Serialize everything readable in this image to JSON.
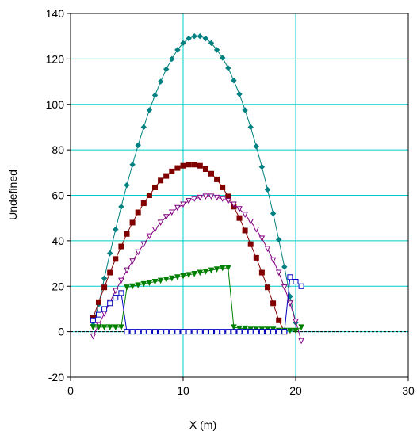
{
  "chart_data": {
    "type": "line",
    "title": "",
    "xlabel": "X (m)",
    "ylabel": "Undefined",
    "xlim": [
      0,
      30
    ],
    "ylim": [
      -20,
      140
    ],
    "xticks": [
      "0",
      "10",
      "20",
      "30"
    ],
    "yticks": [
      "-20",
      "0",
      "20",
      "40",
      "60",
      "80",
      "100",
      "120",
      "140"
    ],
    "xtick_values": [
      0,
      10,
      20,
      30
    ],
    "ytick_values": [
      -20,
      0,
      20,
      40,
      60,
      80,
      100,
      120,
      140
    ],
    "grid": true,
    "grid_color": "#00cccc",
    "zero_line": {
      "y": 0,
      "style": "dashed",
      "color": "#000000"
    },
    "legend": "none",
    "series": [
      {
        "color": "#008080",
        "marker": "diamond",
        "points": [
          [
            2.0,
            3.0
          ],
          [
            2.5,
            12.0
          ],
          [
            3.0,
            23.5
          ],
          [
            3.5,
            34.5
          ],
          [
            4.0,
            45.0
          ],
          [
            4.5,
            55.0
          ],
          [
            5.0,
            64.5
          ],
          [
            5.5,
            73.5
          ],
          [
            6.0,
            82.0
          ],
          [
            6.5,
            90.0
          ],
          [
            7.0,
            97.5
          ],
          [
            7.5,
            104.0
          ],
          [
            8.0,
            110.0
          ],
          [
            8.5,
            115.5
          ],
          [
            9.0,
            120.0
          ],
          [
            9.5,
            124.0
          ],
          [
            10.0,
            127.0
          ],
          [
            10.5,
            129.0
          ],
          [
            11.0,
            130.0
          ],
          [
            11.5,
            130.0
          ],
          [
            12.0,
            129.0
          ],
          [
            12.5,
            127.0
          ],
          [
            13.0,
            124.0
          ],
          [
            13.5,
            120.5
          ],
          [
            14.0,
            116.0
          ],
          [
            14.5,
            110.5
          ],
          [
            15.0,
            104.5
          ],
          [
            15.5,
            97.5
          ],
          [
            16.0,
            90.0
          ],
          [
            16.5,
            81.5
          ],
          [
            17.0,
            72.5
          ],
          [
            17.5,
            62.5
          ],
          [
            18.0,
            52.0
          ],
          [
            18.5,
            40.5
          ],
          [
            19.0,
            28.5
          ],
          [
            19.5,
            15.5
          ],
          [
            20.0,
            4.0
          ]
        ]
      },
      {
        "color": "#800000",
        "marker": "square-filled",
        "points": [
          [
            2.0,
            6.0
          ],
          [
            2.5,
            13.0
          ],
          [
            3.0,
            19.5
          ],
          [
            3.5,
            26.0
          ],
          [
            4.0,
            32.0
          ],
          [
            4.5,
            37.5
          ],
          [
            5.0,
            43.0
          ],
          [
            5.5,
            48.0
          ],
          [
            6.0,
            52.5
          ],
          [
            6.5,
            56.5
          ],
          [
            7.0,
            60.0
          ],
          [
            7.5,
            63.5
          ],
          [
            8.0,
            66.5
          ],
          [
            8.5,
            68.5
          ],
          [
            9.0,
            70.5
          ],
          [
            9.5,
            72.0
          ],
          [
            10.0,
            73.0
          ],
          [
            10.5,
            73.5
          ],
          [
            11.0,
            73.5
          ],
          [
            11.5,
            73.0
          ],
          [
            12.0,
            71.5
          ],
          [
            12.5,
            69.5
          ],
          [
            13.0,
            67.0
          ],
          [
            13.5,
            63.5
          ],
          [
            14.0,
            59.5
          ],
          [
            14.5,
            55.0
          ],
          [
            15.0,
            50.0
          ],
          [
            15.5,
            44.5
          ],
          [
            16.0,
            38.5
          ],
          [
            16.5,
            32.5
          ],
          [
            17.0,
            26.0
          ],
          [
            17.5,
            19.5
          ],
          [
            18.0,
            12.5
          ],
          [
            18.5,
            5.0
          ],
          [
            19.0,
            0.0
          ]
        ]
      },
      {
        "color": "#800080",
        "marker": "triangle-down-open",
        "points": [
          [
            2.0,
            -2.0
          ],
          [
            2.5,
            3.0
          ],
          [
            3.0,
            8.0
          ],
          [
            3.5,
            13.0
          ],
          [
            4.0,
            18.0
          ],
          [
            4.5,
            22.5
          ],
          [
            5.0,
            27.0
          ],
          [
            5.5,
            31.0
          ],
          [
            6.0,
            35.0
          ],
          [
            6.5,
            38.5
          ],
          [
            7.0,
            42.0
          ],
          [
            7.5,
            45.0
          ],
          [
            8.0,
            48.0
          ],
          [
            8.5,
            50.5
          ],
          [
            9.0,
            52.5
          ],
          [
            9.5,
            54.5
          ],
          [
            10.0,
            56.0
          ],
          [
            10.5,
            57.5
          ],
          [
            11.0,
            58.5
          ],
          [
            11.5,
            59.0
          ],
          [
            12.0,
            59.5
          ],
          [
            12.5,
            59.5
          ],
          [
            13.0,
            59.0
          ],
          [
            13.5,
            58.5
          ],
          [
            14.0,
            57.5
          ],
          [
            14.5,
            56.0
          ],
          [
            15.0,
            54.0
          ],
          [
            15.5,
            51.5
          ],
          [
            16.0,
            48.5
          ],
          [
            16.5,
            45.0
          ],
          [
            17.0,
            41.0
          ],
          [
            17.5,
            36.5
          ],
          [
            18.0,
            31.5
          ],
          [
            18.5,
            26.0
          ],
          [
            19.0,
            19.5
          ],
          [
            19.5,
            12.5
          ],
          [
            20.0,
            4.5
          ],
          [
            20.5,
            -4.0
          ]
        ]
      },
      {
        "color": "#008000",
        "marker": "triangle-down-filled",
        "points": [
          [
            2.0,
            2.0
          ],
          [
            2.5,
            2.0
          ],
          [
            3.0,
            2.0
          ],
          [
            3.5,
            2.0
          ],
          [
            4.0,
            2.0
          ],
          [
            4.5,
            2.0
          ],
          [
            5.0,
            19.5
          ],
          [
            5.5,
            20.0
          ],
          [
            6.0,
            20.5
          ],
          [
            6.5,
            21.0
          ],
          [
            7.0,
            21.5
          ],
          [
            7.5,
            22.0
          ],
          [
            8.0,
            22.5
          ],
          [
            8.5,
            23.0
          ],
          [
            9.0,
            23.5
          ],
          [
            9.5,
            24.0
          ],
          [
            10.0,
            24.5
          ],
          [
            10.5,
            25.0
          ],
          [
            11.0,
            25.5
          ],
          [
            11.5,
            26.0
          ],
          [
            12.0,
            26.5
          ],
          [
            12.5,
            27.0
          ],
          [
            13.0,
            27.5
          ],
          [
            13.5,
            28.0
          ],
          [
            14.0,
            28.0
          ],
          [
            14.5,
            2.0
          ],
          [
            15.0,
            1.5
          ],
          [
            15.5,
            1.5
          ],
          [
            16.0,
            1.0
          ],
          [
            16.5,
            1.0
          ],
          [
            17.0,
            1.0
          ],
          [
            17.5,
            1.0
          ],
          [
            18.0,
            1.0
          ],
          [
            18.5,
            0.5
          ],
          [
            19.0,
            0.5
          ],
          [
            19.5,
            0.5
          ],
          [
            20.0,
            0.5
          ],
          [
            20.5,
            2.0
          ]
        ]
      },
      {
        "color": "#0000c0",
        "marker": "square-open",
        "points": [
          [
            2.0,
            5.0
          ],
          [
            2.5,
            7.5
          ],
          [
            3.0,
            10.0
          ],
          [
            3.5,
            12.5
          ],
          [
            4.0,
            15.0
          ],
          [
            4.5,
            17.0
          ],
          [
            5.0,
            0.0
          ],
          [
            5.5,
            0.0
          ],
          [
            6.0,
            0.0
          ],
          [
            6.5,
            0.0
          ],
          [
            7.0,
            0.0
          ],
          [
            7.5,
            0.0
          ],
          [
            8.0,
            0.0
          ],
          [
            8.5,
            0.0
          ],
          [
            9.0,
            0.0
          ],
          [
            9.5,
            0.0
          ],
          [
            10.0,
            0.0
          ],
          [
            10.5,
            0.0
          ],
          [
            11.0,
            0.0
          ],
          [
            11.5,
            0.0
          ],
          [
            12.0,
            0.0
          ],
          [
            12.5,
            0.0
          ],
          [
            13.0,
            0.0
          ],
          [
            13.5,
            0.0
          ],
          [
            14.0,
            0.0
          ],
          [
            14.5,
            0.0
          ],
          [
            15.0,
            0.0
          ],
          [
            15.5,
            0.0
          ],
          [
            16.0,
            0.0
          ],
          [
            16.5,
            0.0
          ],
          [
            17.0,
            0.0
          ],
          [
            17.5,
            0.0
          ],
          [
            18.0,
            0.0
          ],
          [
            18.5,
            0.0
          ],
          [
            19.0,
            0.0
          ],
          [
            19.5,
            24.0
          ],
          [
            20.0,
            22.0
          ],
          [
            20.5,
            20.0
          ]
        ]
      }
    ]
  }
}
